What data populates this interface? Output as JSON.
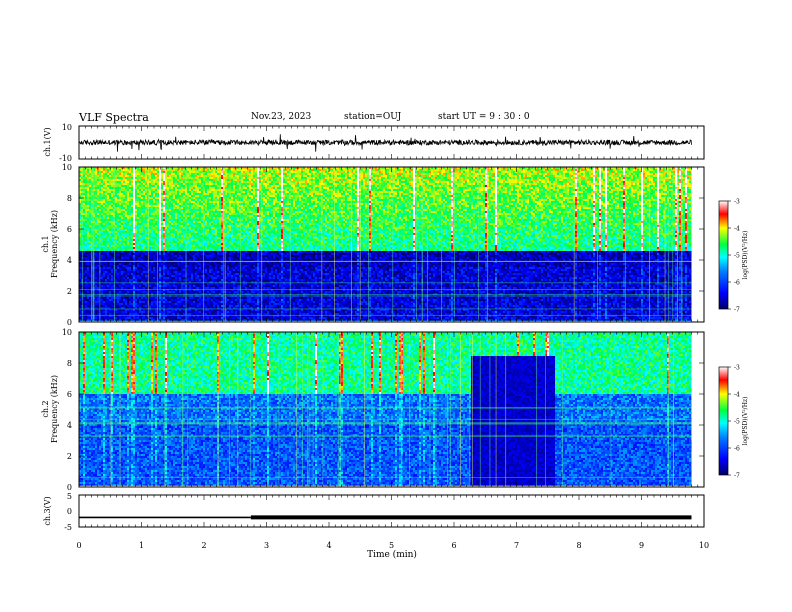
{
  "header": {
    "title": "VLF Spectra",
    "date": "Nov.23, 2023",
    "station": "station=OUJ",
    "start_ut": "start  UT =  9 : 30 : 0"
  },
  "colors": {
    "colormap": [
      "#000066",
      "#0000ff",
      "#0080ff",
      "#00ffff",
      "#00ff40",
      "#ffff00",
      "#ff0000",
      "#ffffff"
    ],
    "trace": "#000000"
  },
  "chart_data": [
    {
      "type": "line",
      "panel": "ch1-waveform",
      "ylabel": "ch.1(V)",
      "ylim": [
        -10,
        10
      ],
      "yticks": [
        10,
        -10
      ],
      "xlim": [
        0,
        10
      ],
      "baseline": 0,
      "noise_amplitude": 1.5
    },
    {
      "type": "heatmap",
      "panel": "ch1-spectrogram",
      "ylabel_top": "ch.1",
      "ylabel": "Frequency (kHz)",
      "ylim": [
        0,
        10
      ],
      "yticks": [
        "0",
        "2",
        "4",
        "6",
        "8",
        "10"
      ],
      "xlim": [
        0,
        10
      ],
      "data_end_min": 9.8,
      "colorbar": {
        "label": "log(PSD)(V²/Hz)",
        "range": [
          -7,
          -3
        ],
        "ticks": [
          "-3",
          "-4",
          "-5",
          "-6",
          "-7"
        ]
      }
    },
    {
      "type": "heatmap",
      "panel": "ch2-spectrogram",
      "ylabel_top": "ch.2",
      "ylabel": "Frequency (kHz)",
      "ylim": [
        0,
        10
      ],
      "yticks": [
        "0",
        "2",
        "4",
        "6",
        "8",
        "10"
      ],
      "xlim": [
        0,
        10
      ],
      "data_end_min": 9.8,
      "quiet_interval_min": [
        6.25,
        7.6
      ],
      "colorbar": {
        "label": "log(PSD)(V²/Hz)",
        "range": [
          -7,
          -3
        ],
        "ticks": [
          "-3",
          "-4",
          "-5",
          "-6",
          "-7"
        ]
      }
    },
    {
      "type": "line",
      "panel": "ch3-waveform",
      "ylabel": "ch.3(V)",
      "ylim": [
        -5,
        5
      ],
      "yticks": [
        "5",
        "0",
        "-5"
      ],
      "xlim": [
        0,
        10
      ],
      "x": [
        0,
        2.75,
        2.75,
        9.8
      ],
      "y": [
        -2.0,
        -2.0,
        -2.0,
        -2.0
      ],
      "thick_from_min": 2.75
    }
  ],
  "x_axis": {
    "label": "Time (min)",
    "ticks": [
      "0",
      "1",
      "2",
      "3",
      "4",
      "5",
      "6",
      "7",
      "8",
      "9",
      "10"
    ]
  }
}
